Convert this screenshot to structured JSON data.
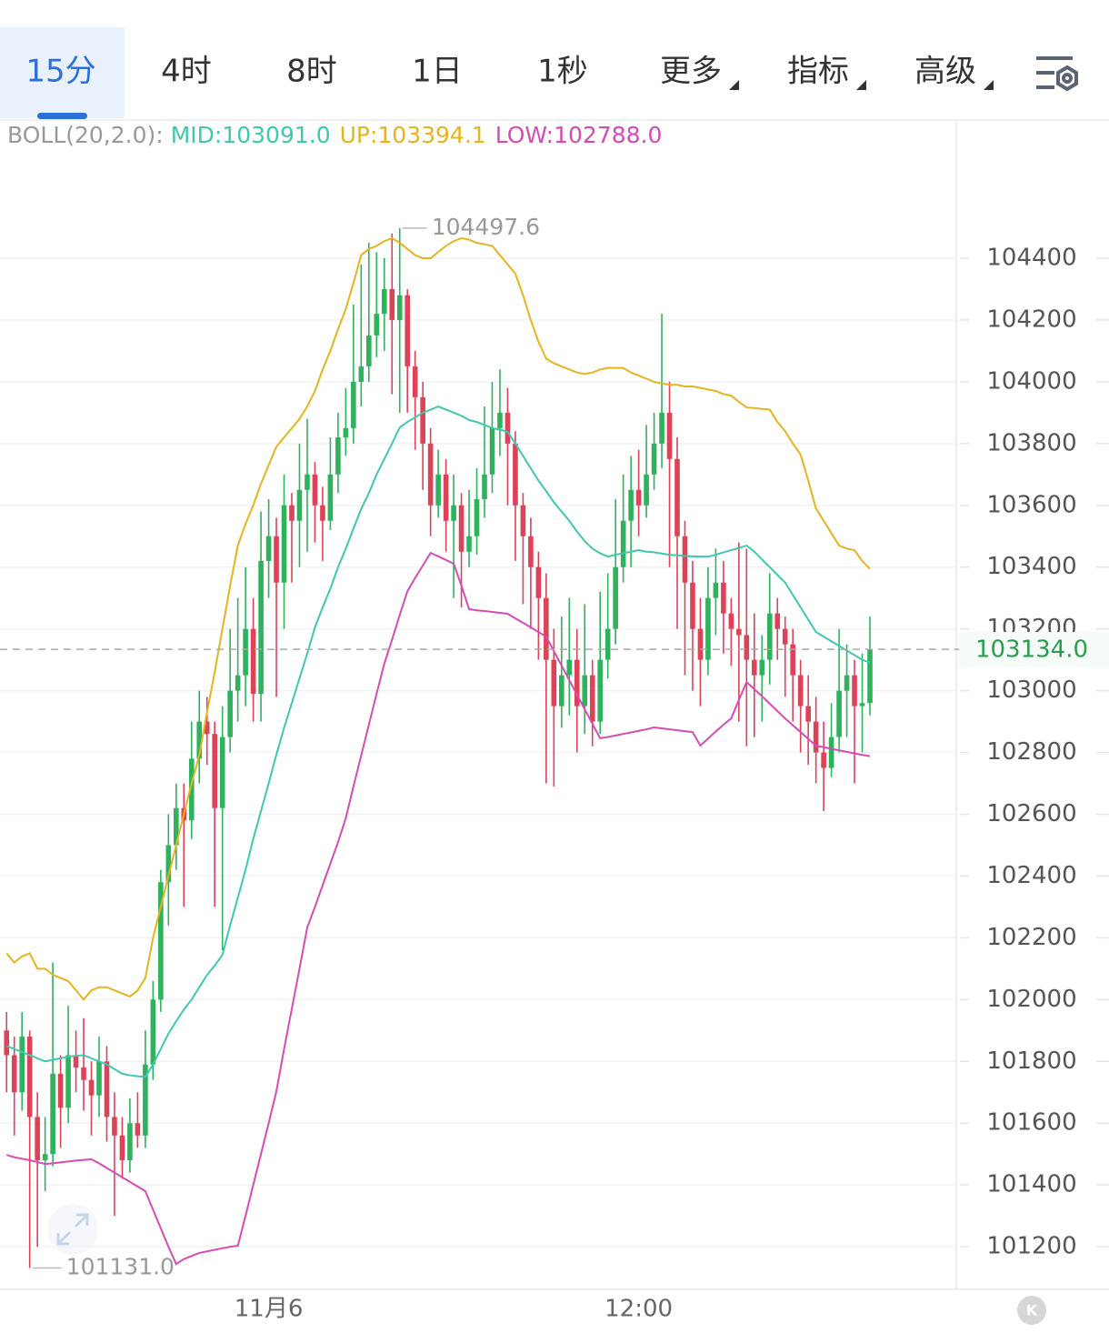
{
  "tabs": [
    "15分",
    "4时",
    "8时",
    "1日",
    "1秒",
    "更多",
    "指标",
    "高级"
  ],
  "active_tab": 0,
  "menu_tabs": [
    5,
    6,
    7
  ],
  "chart_data": {
    "type": "candlestick",
    "indicator": "BOLL(20,2.0):",
    "up_color": "#2eb25c",
    "down_color": "#dd4257",
    "categories": [
      null,
      null,
      null,
      null,
      null,
      null,
      null,
      null,
      null,
      null,
      null,
      null,
      null,
      null,
      null,
      null,
      null,
      null,
      null,
      null,
      null,
      null,
      null,
      null,
      null,
      null,
      null,
      null,
      null,
      null,
      null,
      null,
      null,
      null,
      "11月6",
      null,
      null,
      null,
      null,
      null,
      null,
      null,
      null,
      null,
      null,
      null,
      null,
      null,
      null,
      null,
      null,
      null,
      null,
      null,
      null,
      null,
      null,
      null,
      null,
      null,
      null,
      null,
      null,
      null,
      null,
      null,
      null,
      null,
      null,
      null,
      null,
      null,
      null,
      null,
      null,
      null,
      null,
      null,
      null,
      null,
      null,
      null,
      "12:00",
      null,
      null,
      null,
      null,
      null,
      null,
      null,
      null,
      null,
      null,
      null,
      null,
      null,
      null,
      null,
      null,
      null,
      null,
      null,
      null,
      null,
      null,
      null,
      null,
      null,
      null,
      null,
      null,
      null,
      null
    ],
    "open": [
      101900,
      101820,
      101700,
      101880,
      101620,
      101480,
      101500,
      101760,
      101650,
      101820,
      101780,
      101740,
      101690,
      101800,
      101620,
      101560,
      101480,
      101600,
      101560,
      101790,
      102000,
      102380,
      102500,
      102620,
      102580,
      102780,
      102900,
      102860,
      102620,
      102850,
      103000,
      103050,
      103200,
      102990,
      103420,
      103500,
      103350,
      103600,
      103550,
      103650,
      103700,
      103600,
      103550,
      103700,
      103820,
      103850,
      104000,
      104050,
      104150,
      104220,
      104300,
      104200,
      104280,
      104050,
      103950,
      103800,
      103600,
      103700,
      103550,
      103600,
      103450,
      103500,
      103620,
      103700,
      103850,
      103900,
      103800,
      103600,
      103500,
      103400,
      103300,
      103100,
      102950,
      103050,
      103100,
      102950,
      103050,
      102900,
      103100,
      103200,
      103400,
      103550,
      103650,
      103600,
      103700,
      103800,
      103900,
      103750,
      103500,
      103350,
      103200,
      103100,
      103300,
      103350,
      103250,
      103200,
      103180,
      103100,
      103050,
      103100,
      103250,
      103200,
      103150,
      103050,
      102950,
      102900,
      102800,
      102750,
      102850,
      103000,
      103050,
      102950,
      102960
    ],
    "high": [
      101960,
      101880,
      101960,
      101900,
      101700,
      101620,
      102120,
      101820,
      101980,
      101900,
      101940,
      101800,
      101880,
      101850,
      101700,
      101620,
      101680,
      101700,
      101900,
      102060,
      102420,
      102600,
      102700,
      102700,
      102900,
      103000,
      102980,
      102900,
      102950,
      103200,
      103300,
      103400,
      103300,
      103580,
      103620,
      103560,
      103700,
      103640,
      103800,
      103880,
      103740,
      103660,
      103820,
      103900,
      103980,
      104250,
      104380,
      104450,
      104420,
      104400,
      104480,
      104497.6,
      104300,
      104100,
      104000,
      103850,
      103780,
      103750,
      103700,
      103640,
      103650,
      103720,
      103920,
      104000,
      104040,
      103980,
      103840,
      103640,
      103560,
      103450,
      103380,
      103200,
      103240,
      103300,
      103200,
      103280,
      103100,
      103320,
      103380,
      103620,
      103700,
      103760,
      103780,
      103860,
      103900,
      104220,
      104000,
      103820,
      103550,
      103420,
      103300,
      103400,
      103460,
      103420,
      103300,
      103480,
      103460,
      103250,
      103180,
      103380,
      103300,
      103240,
      103200,
      103100,
      103050,
      102980,
      102900,
      102960,
      103200,
      103150,
      103100,
      103120,
      103240
    ],
    "low": [
      101700,
      101560,
      101640,
      101131,
      101200,
      101380,
      101460,
      101520,
      101600,
      101700,
      101640,
      101560,
      101620,
      101540,
      101300,
      101420,
      101440,
      101520,
      101520,
      101740,
      101960,
      102240,
      102420,
      102300,
      102520,
      102700,
      102760,
      102300,
      102160,
      102800,
      102900,
      102950,
      102900,
      102900,
      103300,
      102980,
      103200,
      103350,
      103400,
      103450,
      103480,
      103420,
      103520,
      103640,
      103760,
      103800,
      103920,
      104000,
      104080,
      104100,
      103960,
      103900,
      103900,
      103780,
      103650,
      103500,
      103560,
      103450,
      103300,
      103270,
      103400,
      103440,
      103560,
      103640,
      103760,
      103600,
      103420,
      103280,
      103200,
      103100,
      102700,
      102690,
      102880,
      102920,
      102800,
      102860,
      102820,
      102860,
      103040,
      103150,
      103350,
      103400,
      103500,
      103560,
      103650,
      103720,
      103400,
      103200,
      103050,
      103000,
      102950,
      103050,
      103180,
      103120,
      103080,
      102900,
      102820,
      102850,
      102900,
      103020,
      103100,
      102980,
      102900,
      102800,
      102760,
      102700,
      102610,
      102720,
      102800,
      102850,
      102700,
      102800,
      102920
    ],
    "close": [
      101820,
      101700,
      101880,
      101620,
      101480,
      101500,
      101760,
      101650,
      101820,
      101780,
      101740,
      101690,
      101800,
      101620,
      101560,
      101480,
      101600,
      101560,
      101790,
      102000,
      102380,
      102500,
      102620,
      102580,
      102780,
      102900,
      102860,
      102620,
      102850,
      103000,
      103050,
      103200,
      102990,
      103420,
      103500,
      103350,
      103600,
      103550,
      103650,
      103700,
      103600,
      103550,
      103700,
      103820,
      103850,
      104000,
      104050,
      104150,
      104220,
      104300,
      104200,
      104280,
      104050,
      103950,
      103800,
      103600,
      103700,
      103550,
      103600,
      103450,
      103500,
      103620,
      103700,
      103850,
      103900,
      103800,
      103600,
      103500,
      103400,
      103300,
      103100,
      102950,
      103050,
      103100,
      102950,
      103050,
      102900,
      103100,
      103200,
      103400,
      103550,
      103650,
      103600,
      103700,
      103800,
      103900,
      103750,
      103500,
      103350,
      103200,
      103100,
      103300,
      103350,
      103250,
      103200,
      103180,
      103100,
      103050,
      103100,
      103250,
      103200,
      103150,
      103050,
      102950,
      102900,
      102800,
      102750,
      102850,
      103000,
      103050,
      102950,
      102960,
      103134
    ],
    "series": [
      {
        "label": "MID:103091.0",
        "color": "#3ec8ae",
        "values": [
          101850,
          101840,
          101830,
          101820,
          101810,
          101800,
          101805,
          101810,
          101815,
          101818,
          101820,
          101810,
          101800,
          101790,
          101775,
          101760,
          101755,
          101752,
          101750,
          101790,
          101840,
          101890,
          101930,
          101968,
          102000,
          102040,
          102080,
          102110,
          102145,
          102240,
          102330,
          102420,
          102520,
          102610,
          102700,
          102793,
          102880,
          102960,
          103040,
          103120,
          103205,
          103270,
          103330,
          103400,
          103460,
          103525,
          103588,
          103640,
          103700,
          103750,
          103800,
          103852,
          103870,
          103885,
          103900,
          103910,
          103920,
          103910,
          103900,
          103890,
          103876,
          103870,
          103860,
          103850,
          103845,
          103838,
          103800,
          103760,
          103720,
          103680,
          103646,
          103610,
          103580,
          103550,
          103515,
          103484,
          103460,
          103445,
          103434,
          103440,
          103445,
          103450,
          103455,
          103450,
          103448,
          103444,
          103440,
          103438,
          103436,
          103435,
          103434,
          103434,
          103440,
          103448,
          103455,
          103462,
          103470,
          103450,
          103425,
          103400,
          103375,
          103350,
          103310,
          103270,
          103230,
          103190,
          103175,
          103160,
          103145,
          103130,
          103115,
          103100,
          103091
        ]
      },
      {
        "label": "UP:103394.1",
        "color": "#e6b41e",
        "values": [
          102150,
          102120,
          102140,
          102150,
          102100,
          102100,
          102080,
          102070,
          102060,
          102030,
          102000,
          102030,
          102040,
          102040,
          102030,
          102020,
          102010,
          102030,
          102070,
          102200,
          102300,
          102400,
          102500,
          102600,
          102700,
          102790,
          102930,
          103060,
          103200,
          103340,
          103470,
          103540,
          103600,
          103670,
          103730,
          103790,
          103820,
          103850,
          103880,
          103920,
          103970,
          104040,
          104100,
          104170,
          104235,
          104320,
          104410,
          104430,
          104440,
          104455,
          104465,
          104450,
          104430,
          104410,
          104400,
          104400,
          104420,
          104440,
          104455,
          104465,
          104460,
          104450,
          104445,
          104440,
          104410,
          104380,
          104350,
          104280,
          104200,
          104130,
          104075,
          104060,
          104050,
          104040,
          104030,
          104025,
          104030,
          104040,
          104045,
          104045,
          104045,
          104030,
          104020,
          104010,
          104000,
          103995,
          103990,
          103990,
          103985,
          103985,
          103980,
          103975,
          103970,
          103960,
          103955,
          103935,
          103917,
          103915,
          103912,
          103910,
          103870,
          103840,
          103800,
          103765,
          103680,
          103590,
          103550,
          103510,
          103470,
          103460,
          103455,
          103420,
          103394.1
        ]
      },
      {
        "label": "LOW:102788.0",
        "color": "#d64bb4",
        "values": [
          101497,
          101490,
          101485,
          101480,
          101474,
          101468,
          101470,
          101473,
          101476,
          101479,
          101481,
          101483,
          101470,
          101455,
          101440,
          101425,
          101410,
          101395,
          101380,
          101320,
          101260,
          101200,
          101144,
          101160,
          101170,
          101180,
          101185,
          101190,
          101195,
          101200,
          101203,
          101300,
          101400,
          101500,
          101600,
          101703,
          101840,
          101970,
          102100,
          102233,
          102300,
          102370,
          102440,
          102510,
          102587,
          102690,
          102790,
          102890,
          102990,
          103087,
          103165,
          103245,
          103322,
          103365,
          103405,
          103446,
          103435,
          103423,
          103411,
          103340,
          103264,
          103260,
          103258,
          103255,
          103252,
          103249,
          103234,
          103220,
          103205,
          103190,
          103175,
          103128,
          103081,
          103034,
          102987,
          102940,
          102893,
          102846,
          102850,
          102855,
          102860,
          102865,
          102870,
          102875,
          102881,
          102878,
          102875,
          102872,
          102869,
          102866,
          102822,
          102845,
          102868,
          102890,
          102910,
          102970,
          103028,
          103005,
          102982,
          102958,
          102934,
          102910,
          102888,
          102866,
          102844,
          102822,
          102817,
          102812,
          102807,
          102802,
          102797,
          102792,
          102788
        ]
      }
    ],
    "max_label": {
      "value": 104497.6,
      "label": "104497.6"
    },
    "min_label": {
      "value": 101131,
      "label": "101131.0"
    },
    "last_price": {
      "value": 103134,
      "label": "103134.0"
    },
    "last_price_color": "#2a9d4f",
    "ylim": [
      101062,
      104840
    ],
    "yticks": [
      101200,
      101400,
      101600,
      101800,
      102000,
      102200,
      102400,
      102600,
      102800,
      103000,
      103200,
      103400,
      103600,
      103800,
      104000,
      104200,
      104400
    ],
    "grid": true
  }
}
